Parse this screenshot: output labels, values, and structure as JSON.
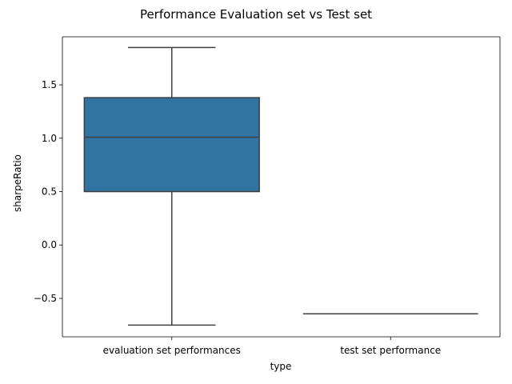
{
  "chart_data": {
    "type": "box",
    "title": "Performance Evaluation set vs Test set",
    "xlabel": "type",
    "ylabel": "sharpeRatio",
    "categories": [
      "evaluation set performances",
      "test set performance"
    ],
    "boxes": [
      {
        "whisker_low": -0.75,
        "q1": 0.5,
        "median": 1.01,
        "q3": 1.38,
        "whisker_high": 1.85
      },
      {
        "whisker_low": -0.645,
        "q1": -0.645,
        "median": -0.645,
        "q3": -0.645,
        "whisker_high": -0.645
      }
    ],
    "yticks": [
      -0.5,
      0.0,
      0.5,
      1.0,
      1.5
    ],
    "ytick_labels": [
      "−0.5",
      "0.0",
      "0.5",
      "1.0",
      "1.5"
    ],
    "ylim": [
      -0.86,
      1.95
    ],
    "grid": false,
    "colors": {
      "box_fill": "#3274a1",
      "line": "#3f3f3f",
      "axis": "#000000"
    }
  }
}
